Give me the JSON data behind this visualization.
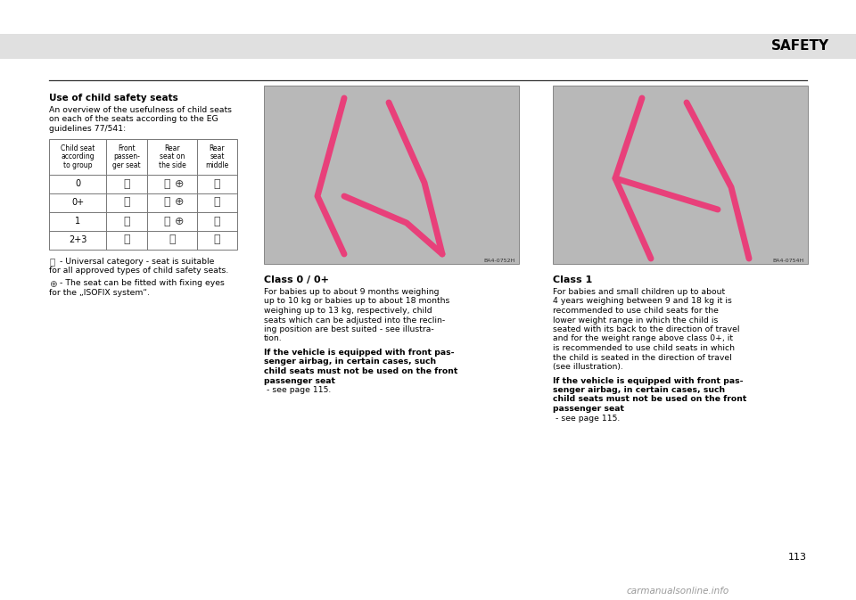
{
  "page_bg": "#ffffff",
  "header_bg": "#e0e0e0",
  "header_text": "SAFETY",
  "header_text_color": "#000000",
  "page_number": "113",
  "watermark": "carmanualsonline.info",
  "separator_color": "#333333",
  "title_left": "Use of child safety seats",
  "intro_text": "An overview of the usefulness of child seats\non each of the seats according to the EG\nguidelines 77/541:",
  "table_headers": [
    "Child seat\naccording\nto group",
    "Front\npassen-\nger seat",
    "Rear\nseat on\nthe side",
    "Rear\nseat\nmiddle"
  ],
  "table_rows": [
    {
      "group": "0",
      "rear_side_plus": true
    },
    {
      "group": "0+",
      "rear_side_plus": true
    },
    {
      "group": "1",
      "rear_side_plus": true
    },
    {
      "group": "2+3",
      "rear_side_plus": false
    }
  ],
  "legend1_sym": "Ⓤ",
  "legend1_text": " - Universal category - seat is suitable\nfor all approved types of child safety seats.",
  "legend2_sym": "⊕",
  "legend2_text": " - The seat can be fitted with fixing eyes\nfor the „ISOFIX system“.",
  "class0_title": "Class 0 / 0+",
  "class0_text": "For babies up to about 9 months weighing\nup to 10 kg or babies up to about 18 months\nweighing up to 13 kg, respectively, child\nseats which can be adjusted into the reclin-\ning position are best suited - see illustra-\ntion.",
  "class0_bold": "If the vehicle is equipped with front pas-\nsenger airbag, in certain cases, such\nchild seats must not be used on the front\npassenger seat",
  "class0_normal_suffix": " - see page 115.",
  "class1_title": "Class 1",
  "class1_text": "For babies and small children up to about\n4 years weighing between 9 and 18 kg it is\nrecommended to use child seats for the\nlower weight range in which the child is\nseated with its back to the direction of travel\nand for the weight range above class 0+, it\nis recommended to use child seats in which\nthe child is seated in the direction of travel\n(see illustration).",
  "class1_bold": "If the vehicle is equipped with front pas-\nsenger airbag, in certain cases, such\nchild seats must not be used on the front\npassenger seat",
  "class1_normal_suffix": " - see page 115.",
  "image_left_label": "BA4-0752H",
  "image_right_label": "BA4-0754H",
  "img_pink_color": "#e8407a",
  "img_gray_bg": "#c8c8c8",
  "img_border": "#888888",
  "table_border": "#777777"
}
